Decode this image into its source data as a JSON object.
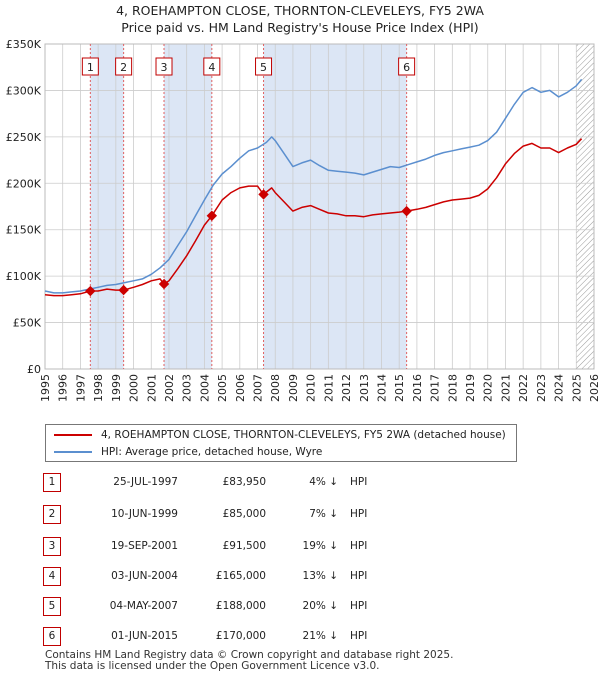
{
  "title_line1": "4, ROEHAMPTON CLOSE, THORNTON-CLEVELEYS, FY5 2WA",
  "title_line2": "Price paid vs. HM Land Registry's House Price Index (HPI)",
  "legend": {
    "property": "4, ROEHAMPTON CLOSE, THORNTON-CLEVELEYS, FY5 2WA (detached house)",
    "hpi": "HPI: Average price, detached house, Wyre"
  },
  "colors": {
    "property": "#cc0000",
    "hpi": "#5b8fcf",
    "band": "#dce6f5",
    "marker_line": "#e06060",
    "grid": "#cccccc"
  },
  "sales": [
    {
      "num": "1",
      "date": "25-JUL-1997",
      "price": "£83,950",
      "pct": "4% ↓",
      "hpi": "HPI"
    },
    {
      "num": "2",
      "date": "10-JUN-1999",
      "price": "£85,000",
      "pct": "7% ↓",
      "hpi": "HPI"
    },
    {
      "num": "3",
      "date": "19-SEP-2001",
      "price": "£91,500",
      "pct": "19% ↓",
      "hpi": "HPI"
    },
    {
      "num": "4",
      "date": "03-JUN-2004",
      "price": "£165,000",
      "pct": "13% ↓",
      "hpi": "HPI"
    },
    {
      "num": "5",
      "date": "04-MAY-2007",
      "price": "£188,000",
      "pct": "20% ↓",
      "hpi": "HPI"
    },
    {
      "num": "6",
      "date": "01-JUN-2015",
      "price": "£170,000",
      "pct": "21% ↓",
      "hpi": "HPI"
    }
  ],
  "footer_line1": "Contains HM Land Registry data © Crown copyright and database right 2025.",
  "footer_line2": "This data is licensed under the Open Government Licence v3.0.",
  "chart_data": {
    "type": "line",
    "x_range": [
      1995,
      2026
    ],
    "ylim": [
      0,
      350000
    ],
    "y_ticks": [
      0,
      50000,
      100000,
      150000,
      200000,
      250000,
      300000,
      350000
    ],
    "y_tick_labels": [
      "£0",
      "£50K",
      "£100K",
      "£150K",
      "£200K",
      "£250K",
      "£300K",
      "£350K"
    ],
    "x_ticks": [
      1995,
      1996,
      1997,
      1998,
      1999,
      2000,
      2001,
      2002,
      2003,
      2004,
      2005,
      2006,
      2007,
      2008,
      2009,
      2010,
      2011,
      2012,
      2013,
      2014,
      2015,
      2016,
      2017,
      2018,
      2019,
      2020,
      2021,
      2022,
      2023,
      2024,
      2025,
      2026
    ],
    "shaded_ranges": [
      [
        1997.56,
        1999.44
      ],
      [
        2001.72,
        2004.42
      ],
      [
        2007.34,
        2015.42
      ]
    ],
    "hatch_from": 2025.0,
    "sale_points": [
      {
        "label": "1",
        "x": 1997.56,
        "y": 83950
      },
      {
        "label": "2",
        "x": 1999.44,
        "y": 85000
      },
      {
        "label": "3",
        "x": 2001.72,
        "y": 91500
      },
      {
        "label": "4",
        "x": 2004.42,
        "y": 165000
      },
      {
        "label": "5",
        "x": 2007.34,
        "y": 188000
      },
      {
        "label": "6",
        "x": 2015.42,
        "y": 170000
      }
    ],
    "series": [
      {
        "name": "HPI: Average price, detached house, Wyre",
        "x": [
          1995,
          1995.5,
          1996,
          1996.5,
          1997,
          1997.5,
          1998,
          1998.5,
          1999,
          1999.5,
          2000,
          2000.5,
          2001,
          2001.5,
          2002,
          2002.5,
          2003,
          2003.5,
          2004,
          2004.5,
          2005,
          2005.5,
          2006,
          2006.5,
          2007,
          2007.5,
          2007.8,
          2008,
          2008.5,
          2009,
          2009.5,
          2010,
          2010.5,
          2011,
          2011.5,
          2012,
          2012.5,
          2013,
          2013.5,
          2014,
          2014.5,
          2015,
          2015.5,
          2016,
          2016.5,
          2017,
          2017.5,
          2018,
          2018.5,
          2019,
          2019.5,
          2020,
          2020.5,
          2021,
          2021.5,
          2022,
          2022.5,
          2023,
          2023.5,
          2024,
          2024.5,
          2025,
          2025.3
        ],
        "values": [
          84000,
          82000,
          82000,
          83000,
          84000,
          86000,
          88000,
          90000,
          91000,
          93000,
          95000,
          97000,
          102000,
          109000,
          118000,
          133000,
          148000,
          165000,
          182000,
          198000,
          210000,
          218000,
          227000,
          235000,
          238000,
          244000,
          250000,
          246000,
          232000,
          218000,
          222000,
          225000,
          219000,
          214000,
          213000,
          212000,
          211000,
          209000,
          212000,
          215000,
          218000,
          217000,
          220000,
          223000,
          226000,
          230000,
          233000,
          235000,
          237000,
          239000,
          241000,
          246000,
          255000,
          270000,
          285000,
          298000,
          303000,
          298000,
          300000,
          293000,
          298000,
          305000,
          312000
        ]
      },
      {
        "name": "4, ROEHAMPTON CLOSE, THORNTON-CLEVELEYS, FY5 2WA (detached house)",
        "x": [
          1995,
          1995.5,
          1996,
          1996.5,
          1997,
          1997.56,
          1998,
          1998.5,
          1999,
          1999.44,
          2000,
          2000.5,
          2001,
          2001.5,
          2001.72,
          2002,
          2002.5,
          2003,
          2003.5,
          2004,
          2004.42,
          2005,
          2005.5,
          2006,
          2006.5,
          2007,
          2007.34,
          2007.8,
          2008,
          2008.5,
          2009,
          2009.5,
          2010,
          2010.5,
          2011,
          2011.5,
          2012,
          2012.5,
          2013,
          2013.5,
          2014,
          2014.5,
          2015,
          2015.42,
          2016,
          2016.5,
          2017,
          2017.5,
          2018,
          2018.5,
          2019,
          2019.5,
          2020,
          2020.5,
          2021,
          2021.5,
          2022,
          2022.5,
          2023,
          2023.5,
          2024,
          2024.5,
          2025,
          2025.3
        ],
        "values": [
          80000,
          79000,
          79000,
          80000,
          81000,
          83950,
          84000,
          86000,
          85000,
          85000,
          88000,
          91000,
          95000,
          97000,
          91500,
          95000,
          108000,
          122000,
          138000,
          155000,
          165000,
          182000,
          190000,
          195000,
          197000,
          197000,
          188000,
          195000,
          190000,
          180000,
          170000,
          174000,
          176000,
          172000,
          168000,
          167000,
          165000,
          165000,
          164000,
          166000,
          167000,
          168000,
          169000,
          170000,
          172000,
          174000,
          177000,
          180000,
          182000,
          183000,
          184000,
          187000,
          194000,
          206000,
          221000,
          232000,
          240000,
          243000,
          238000,
          238000,
          233000,
          238000,
          242000,
          248000
        ]
      }
    ]
  }
}
